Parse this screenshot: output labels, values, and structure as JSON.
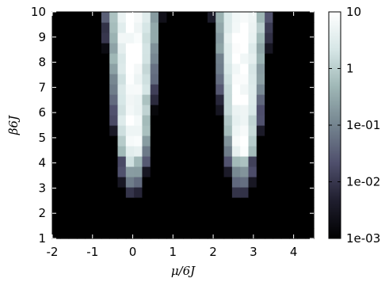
{
  "chart_data": {
    "type": "heatmap",
    "title": "",
    "xlabel": "μ/6J",
    "ylabel": "β6J",
    "xlim": [
      -2,
      4.5
    ],
    "ylim": [
      1,
      10
    ],
    "x_ticks": [
      "-2",
      "-1",
      "0",
      "1",
      "2",
      "3",
      "4"
    ],
    "y_ticks": [
      "1",
      "2",
      "3",
      "4",
      "5",
      "6",
      "7",
      "8",
      "9",
      "10"
    ],
    "colorbar": {
      "scale": "log",
      "range": [
        0.001,
        10
      ],
      "tick_labels": [
        "10",
        "1",
        "1e-01",
        "1e-02",
        "1e-03"
      ],
      "colormap": [
        "#000000",
        "#1f1e2e",
        "#4f4f6c",
        "#74848f",
        "#9eb6b5",
        "#d6e6e6",
        "#ffffff"
      ]
    },
    "lobes": [
      {
        "center_x": 0.0,
        "base_y": 2.8
      },
      {
        "center_x": 2.7,
        "base_y": 2.8
      }
    ],
    "grid": false
  }
}
